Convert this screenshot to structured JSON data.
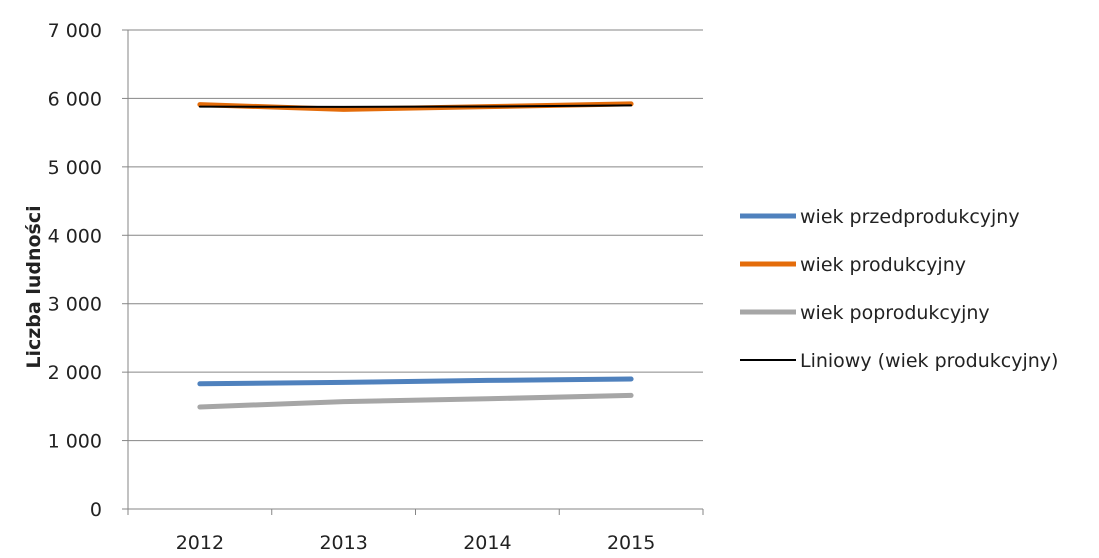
{
  "chart_data": {
    "type": "line",
    "ylabel": "Liczba ludności",
    "xlabel": "",
    "categories": [
      "2012",
      "2013",
      "2014",
      "2015"
    ],
    "ylim": [
      0,
      7000
    ],
    "yticks": [
      0,
      1000,
      2000,
      3000,
      4000,
      5000,
      6000,
      7000
    ],
    "ytick_labels": [
      "0",
      "1 000",
      "2 000",
      "3 000",
      "4 000",
      "5 000",
      "6 000",
      "7 000"
    ],
    "grid": "horizontal",
    "legend_position": "right",
    "series": [
      {
        "name": "wiek przedprodukcyjny",
        "values": [
          1830,
          1850,
          1880,
          1900
        ],
        "color": "#4f81bd",
        "style": "thick"
      },
      {
        "name": "wiek produkcyjny",
        "values": [
          5910,
          5840,
          5880,
          5920
        ],
        "color": "#e46c0a",
        "style": "thick"
      },
      {
        "name": "wiek poprodukcyjny",
        "values": [
          1490,
          1570,
          1610,
          1660
        ],
        "color": "#a6a6a6",
        "style": "thick"
      },
      {
        "name": "Liniowy (wiek produkcyjny)",
        "values": [
          5880,
          5876,
          5882,
          5898
        ],
        "color": "#000000",
        "style": "thin"
      }
    ]
  }
}
